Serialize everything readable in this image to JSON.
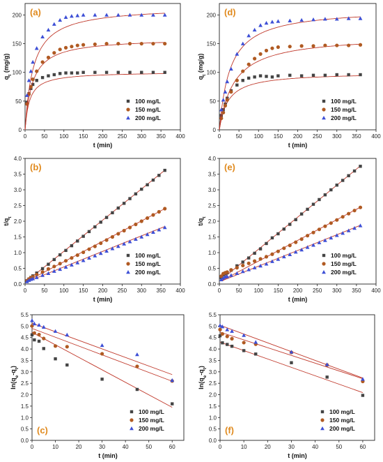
{
  "style": {
    "series_colors": [
      "#444444",
      "#b05a22",
      "#3d4fd6"
    ],
    "fit_color": "#c0392b",
    "label_color": "#e08a1e",
    "markers": [
      "square",
      "circle",
      "triangle"
    ]
  },
  "chart_data": [
    {
      "id": "a",
      "panel_label": "(a)",
      "type": "scatter",
      "xlabel": "t (min)",
      "ylabel": "q",
      "ylabel_sub": "t",
      "ylabel_unit": " (mg/g)",
      "xlim": [
        0,
        400
      ],
      "ylim": [
        0,
        220
      ],
      "xticks": [
        0,
        50,
        100,
        150,
        200,
        250,
        300,
        350,
        400
      ],
      "yticks": [
        0,
        50,
        100,
        150,
        200
      ],
      "legend": "bottom-right",
      "fit": "curve",
      "series": [
        {
          "name": "100 mg/L",
          "qe": 101,
          "k": 0.00085,
          "x": [
            5,
            10,
            15,
            20,
            30,
            45,
            60,
            75,
            90,
            105,
            120,
            135,
            150,
            180,
            210,
            240,
            270,
            300,
            330,
            360
          ],
          "y": [
            48,
            63,
            72,
            79,
            86,
            91,
            94,
            96,
            98,
            99,
            99,
            99,
            100,
            100,
            100,
            100,
            100,
            100,
            100,
            100
          ]
        },
        {
          "name": "150 mg/L",
          "qe": 160,
          "k": 0.00034,
          "x": [
            5,
            10,
            15,
            20,
            30,
            45,
            60,
            75,
            90,
            105,
            120,
            135,
            150,
            180,
            210,
            240,
            270,
            300,
            330,
            360
          ],
          "y": [
            45,
            62,
            75,
            88,
            102,
            118,
            126,
            134,
            140,
            143,
            145,
            147,
            148,
            149,
            150,
            150,
            150,
            150,
            150,
            150
          ]
        },
        {
          "name": "200 mg/L",
          "qe": 215,
          "k": 0.00022,
          "x": [
            5,
            10,
            15,
            20,
            30,
            45,
            60,
            75,
            90,
            105,
            120,
            135,
            150,
            180,
            210,
            240,
            270,
            300,
            330,
            360
          ],
          "y": [
            60,
            86,
            102,
            118,
            142,
            162,
            174,
            184,
            191,
            196,
            198,
            199,
            200,
            200,
            200,
            200,
            200,
            200,
            200,
            200
          ]
        }
      ]
    },
    {
      "id": "d",
      "panel_label": "(d)",
      "type": "scatter",
      "xlabel": "t (min)",
      "ylabel": "q",
      "ylabel_sub": "t",
      "ylabel_unit": " (mg/g)",
      "xlim": [
        0,
        400
      ],
      "ylim": [
        0,
        220
      ],
      "xticks": [
        0,
        50,
        100,
        150,
        200,
        250,
        300,
        350,
        400
      ],
      "yticks": [
        0,
        50,
        100,
        150,
        200
      ],
      "legend": "bottom-right",
      "fit": "curve",
      "series": [
        {
          "name": "100 mg/L",
          "qe": 100,
          "k": 0.00045,
          "x": [
            5,
            10,
            15,
            20,
            30,
            45,
            60,
            75,
            90,
            105,
            120,
            135,
            150,
            180,
            210,
            240,
            270,
            300,
            330,
            360
          ],
          "y": [
            25,
            35,
            45,
            55,
            68,
            78,
            86,
            90,
            92,
            94,
            93,
            92,
            94,
            95,
            94,
            95,
            95,
            96,
            96,
            96
          ]
        },
        {
          "name": "150 mg/L",
          "qe": 165,
          "k": 0.00016,
          "x": [
            5,
            10,
            15,
            20,
            30,
            45,
            60,
            75,
            90,
            105,
            120,
            135,
            150,
            180,
            210,
            240,
            270,
            300,
            330,
            360
          ],
          "y": [
            20,
            30,
            42,
            52,
            66,
            86,
            102,
            114,
            124,
            132,
            138,
            142,
            144,
            145,
            146,
            146,
            147,
            147,
            147,
            148
          ]
        },
        {
          "name": "200 mg/L",
          "qe": 212,
          "k": 0.00017,
          "x": [
            5,
            10,
            15,
            20,
            30,
            45,
            60,
            75,
            90,
            105,
            120,
            135,
            150,
            180,
            210,
            240,
            270,
            300,
            330,
            360
          ],
          "y": [
            35,
            52,
            66,
            84,
            106,
            132,
            150,
            164,
            174,
            182,
            186,
            188,
            189,
            190,
            191,
            192,
            193,
            193,
            194,
            194
          ]
        }
      ]
    },
    {
      "id": "b",
      "panel_label": "(b)",
      "type": "scatter",
      "xlabel": "t (min)",
      "ylabel": "t/q",
      "ylabel_sub": "t",
      "ylabel_unit": "",
      "xlim": [
        0,
        400
      ],
      "ylim": [
        0,
        4.0
      ],
      "xticks": [
        0,
        50,
        100,
        150,
        200,
        250,
        300,
        350,
        400
      ],
      "yticks": [
        0.0,
        0.5,
        1.0,
        1.5,
        2.0,
        2.5,
        3.0,
        3.5,
        4.0
      ],
      "legend": "bottom-right",
      "fit": "linear",
      "series": [
        {
          "name": "100 mg/L",
          "slope": 0.00993,
          "intercept": 0.05,
          "x": [
            5,
            10,
            15,
            20,
            30,
            45,
            60,
            75,
            90,
            105,
            120,
            135,
            150,
            165,
            180,
            195,
            210,
            225,
            240,
            255,
            270,
            285,
            300,
            315,
            330,
            345,
            360
          ],
          "y": [
            0.1,
            0.16,
            0.21,
            0.26,
            0.35,
            0.49,
            0.63,
            0.78,
            0.93,
            1.07,
            1.22,
            1.37,
            1.52,
            1.67,
            1.82,
            1.97,
            2.12,
            2.27,
            2.42,
            2.57,
            2.72,
            2.87,
            3.02,
            3.16,
            3.31,
            3.46,
            3.62
          ]
        },
        {
          "name": "150 mg/L",
          "slope": 0.0065,
          "intercept": 0.06,
          "x": [
            5,
            10,
            15,
            20,
            30,
            45,
            60,
            75,
            90,
            105,
            120,
            135,
            150,
            165,
            180,
            195,
            210,
            225,
            240,
            255,
            270,
            285,
            300,
            315,
            330,
            345,
            360
          ],
          "y": [
            0.11,
            0.16,
            0.2,
            0.23,
            0.3,
            0.38,
            0.48,
            0.56,
            0.65,
            0.74,
            0.83,
            0.92,
            1.01,
            1.11,
            1.2,
            1.3,
            1.4,
            1.5,
            1.6,
            1.7,
            1.8,
            1.9,
            2.0,
            2.1,
            2.2,
            2.3,
            2.4
          ]
        },
        {
          "name": "200 mg/L",
          "slope": 0.00495,
          "intercept": 0.05,
          "x": [
            5,
            10,
            15,
            20,
            30,
            45,
            60,
            75,
            90,
            105,
            120,
            135,
            150,
            165,
            180,
            195,
            210,
            225,
            240,
            255,
            270,
            285,
            300,
            315,
            330,
            345,
            360
          ],
          "y": [
            0.08,
            0.12,
            0.15,
            0.17,
            0.21,
            0.28,
            0.34,
            0.41,
            0.47,
            0.54,
            0.61,
            0.68,
            0.75,
            0.83,
            0.9,
            0.98,
            1.05,
            1.13,
            1.2,
            1.28,
            1.35,
            1.43,
            1.5,
            1.58,
            1.65,
            1.73,
            1.8
          ]
        }
      ]
    },
    {
      "id": "e",
      "panel_label": "(e)",
      "type": "scatter",
      "xlabel": "t (min)",
      "ylabel": "t/q",
      "ylabel_sub": "t",
      "ylabel_unit": "",
      "xlim": [
        0,
        400
      ],
      "ylim": [
        0,
        4.0
      ],
      "xticks": [
        0,
        50,
        100,
        150,
        200,
        250,
        300,
        350,
        400
      ],
      "yticks": [
        0.0,
        0.5,
        1.0,
        1.5,
        2.0,
        2.5,
        3.0,
        3.5,
        4.0
      ],
      "legend": "bottom-right",
      "fit": "linear",
      "series": [
        {
          "name": "100 mg/L",
          "slope": 0.0102,
          "intercept": 0.09,
          "x": [
            5,
            10,
            15,
            20,
            30,
            45,
            60,
            75,
            90,
            105,
            120,
            135,
            150,
            165,
            180,
            195,
            210,
            225,
            240,
            255,
            270,
            285,
            300,
            315,
            330,
            345,
            360
          ],
          "y": [
            0.2,
            0.29,
            0.33,
            0.36,
            0.44,
            0.58,
            0.7,
            0.83,
            0.98,
            1.12,
            1.29,
            1.47,
            1.6,
            1.75,
            1.9,
            2.05,
            2.23,
            2.38,
            2.54,
            2.69,
            2.84,
            3.0,
            3.15,
            3.3,
            3.45,
            3.6,
            3.75
          ]
        },
        {
          "name": "150 mg/L",
          "slope": 0.0066,
          "intercept": 0.07,
          "x": [
            5,
            10,
            15,
            20,
            30,
            45,
            60,
            75,
            90,
            105,
            120,
            135,
            150,
            165,
            180,
            195,
            210,
            225,
            240,
            255,
            270,
            285,
            300,
            315,
            330,
            345,
            360
          ],
          "y": [
            0.25,
            0.33,
            0.36,
            0.38,
            0.45,
            0.52,
            0.59,
            0.66,
            0.73,
            0.8,
            0.87,
            0.95,
            1.04,
            1.14,
            1.23,
            1.33,
            1.43,
            1.54,
            1.64,
            1.74,
            1.84,
            1.94,
            2.04,
            2.14,
            2.24,
            2.34,
            2.44
          ]
        },
        {
          "name": "200 mg/L",
          "slope": 0.005,
          "intercept": 0.07,
          "x": [
            5,
            10,
            15,
            20,
            30,
            45,
            60,
            75,
            90,
            105,
            120,
            135,
            150,
            165,
            180,
            195,
            210,
            225,
            240,
            255,
            270,
            285,
            300,
            315,
            330,
            345,
            360
          ],
          "y": [
            0.14,
            0.19,
            0.23,
            0.24,
            0.28,
            0.34,
            0.4,
            0.46,
            0.52,
            0.58,
            0.64,
            0.72,
            0.79,
            0.87,
            0.94,
            1.02,
            1.09,
            1.17,
            1.24,
            1.32,
            1.39,
            1.47,
            1.55,
            1.62,
            1.7,
            1.78,
            1.86
          ]
        }
      ]
    },
    {
      "id": "c",
      "panel_label": "(c)",
      "type": "scatter",
      "xlabel": "t (min)",
      "ylabel": "ln(q",
      "ylabel_sub": "e",
      "ylabel_unit": "-q",
      "ylabel_sub2": "t",
      "ylabel_close": ")",
      "xlim": [
        0,
        65
      ],
      "ylim": [
        0,
        5.5
      ],
      "xticks": [
        0,
        10,
        20,
        30,
        40,
        50,
        60
      ],
      "yticks": [
        0.0,
        0.5,
        1.0,
        1.5,
        2.0,
        2.5,
        3.0,
        3.5,
        4.0,
        4.5,
        5.0,
        5.5
      ],
      "legend": "bottom-right",
      "fit": "linear",
      "series": [
        {
          "name": "100 mg/L",
          "slope": -0.0547,
          "intercept": 4.73,
          "x": [
            0,
            1,
            3,
            5,
            10,
            15,
            30,
            45,
            60
          ],
          "y": [
            4.62,
            4.4,
            4.34,
            4.02,
            3.57,
            3.3,
            2.68,
            2.23,
            1.6
          ]
        },
        {
          "name": "150 mg/L",
          "slope": -0.0385,
          "intercept": 4.9,
          "x": [
            0,
            1,
            3,
            5,
            10,
            15,
            30,
            45,
            60
          ],
          "y": [
            5.01,
            4.7,
            4.63,
            4.46,
            4.13,
            4.1,
            3.79,
            3.24,
            2.6
          ]
        },
        {
          "name": "200 mg/L",
          "slope": -0.0375,
          "intercept": 5.13,
          "x": [
            0,
            1,
            3,
            5,
            10,
            15,
            30,
            45,
            60
          ],
          "y": [
            5.25,
            5.11,
            5.05,
            4.96,
            4.78,
            4.62,
            4.16,
            3.76,
            2.63
          ]
        }
      ]
    },
    {
      "id": "f",
      "panel_label": "(f)",
      "type": "scatter",
      "xlabel": "t (min)",
      "ylabel": "ln(q",
      "ylabel_sub": "e",
      "ylabel_unit": "-q",
      "ylabel_sub2": "t",
      "ylabel_close": ")",
      "xlim": [
        0,
        65
      ],
      "ylim": [
        0,
        5.5
      ],
      "xticks": [
        0,
        10,
        20,
        30,
        40,
        50,
        60
      ],
      "yticks": [
        0.0,
        0.5,
        1.0,
        1.5,
        2.0,
        2.5,
        3.0,
        3.5,
        4.0,
        4.5,
        5.0,
        5.5
      ],
      "legend": "bottom-right",
      "fit": "linear",
      "series": [
        {
          "name": "100 mg/L",
          "slope": -0.0368,
          "intercept": 4.3,
          "x": [
            0,
            1,
            3,
            5,
            10,
            15,
            30,
            45,
            60
          ],
          "y": [
            4.58,
            4.27,
            4.2,
            4.12,
            3.93,
            3.78,
            3.4,
            2.77,
            1.97
          ]
        },
        {
          "name": "150 mg/L",
          "slope": -0.034,
          "intercept": 4.74,
          "x": [
            0,
            1,
            3,
            5,
            10,
            15,
            30,
            45,
            60
          ],
          "y": [
            4.85,
            4.66,
            4.55,
            4.45,
            4.28,
            4.21,
            3.85,
            3.3,
            2.58
          ]
        },
        {
          "name": "200 mg/L",
          "slope": -0.0385,
          "intercept": 5.04,
          "x": [
            0,
            1,
            3,
            5,
            10,
            15,
            30,
            45,
            60
          ],
          "y": [
            5.03,
            4.98,
            4.85,
            4.78,
            4.6,
            4.3,
            3.87,
            3.32,
            2.68
          ]
        }
      ]
    }
  ]
}
